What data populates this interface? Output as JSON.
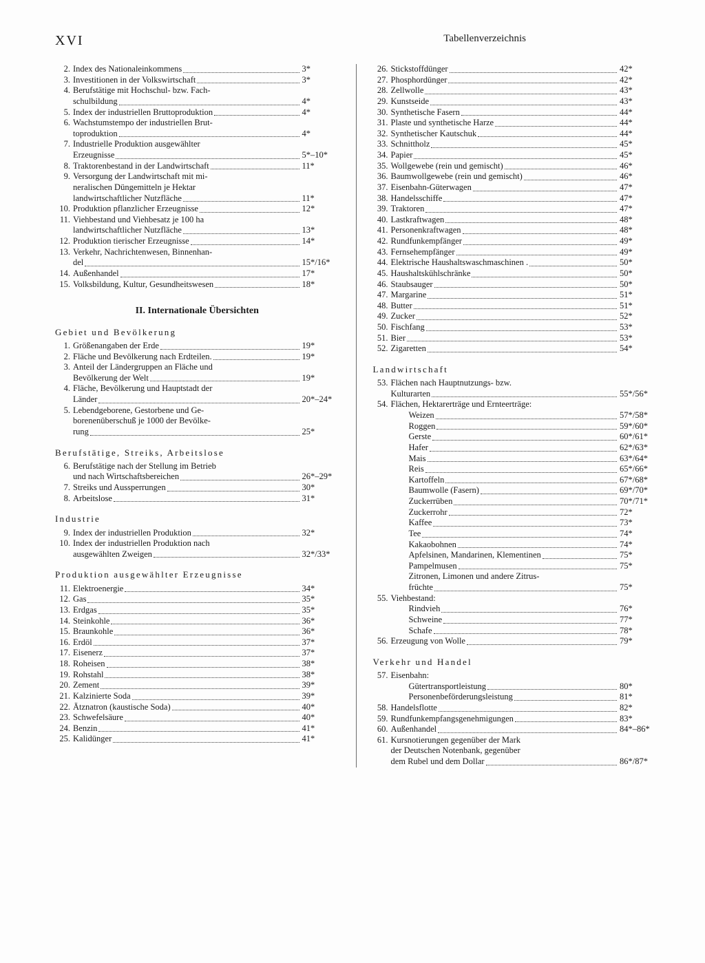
{
  "page_number": "XVI",
  "header_title": "Tabellenverzeichnis",
  "section2_title": "II. Internationale Übersichten",
  "left": {
    "top": [
      {
        "n": "2.",
        "t": "Index des Nationaleinkommens",
        "p": "3*"
      },
      {
        "n": "3.",
        "t": "Investitionen in der Volkswirtschaft",
        "p": "3*"
      },
      {
        "n": "4.",
        "t": "Berufstätige mit Hochschul- bzw. Fach-",
        "t2": "schulbildung",
        "p": "4*"
      },
      {
        "n": "5.",
        "t": "Index der industriellen Bruttoproduktion",
        "p": "4*"
      },
      {
        "n": "6.",
        "t": "Wachstumstempo der industriellen Brut-",
        "t2": "toproduktion",
        "p": "4*"
      },
      {
        "n": "7.",
        "t": "Industrielle Produktion ausgewählter",
        "t2": "Erzeugnisse",
        "p": "5*–10*"
      },
      {
        "n": "8.",
        "t": "Traktorenbestand in der Landwirtschaft",
        "p": "11*"
      },
      {
        "n": "9.",
        "t": "Versorgung der Landwirtschaft mit mi-",
        "t2": "neralischen Düngemitteln je Hektar",
        "t3": "landwirtschaftlicher Nutzfläche",
        "p": "11*"
      },
      {
        "n": "10.",
        "t": "Produktion pflanzlicher Erzeugnisse",
        "p": "12*"
      },
      {
        "n": "11.",
        "t": "Viehbestand und Viehbesatz je 100 ha",
        "t2": "landwirtschaftlicher Nutzfläche",
        "p": "13*"
      },
      {
        "n": "12.",
        "t": "Produktion tierischer Erzeugnisse",
        "p": "14*"
      },
      {
        "n": "13.",
        "t": "Verkehr, Nachrichtenwesen, Binnenhan-",
        "t2": "del",
        "p": "15*/16*"
      },
      {
        "n": "14.",
        "t": "Außenhandel",
        "p": "17*"
      },
      {
        "n": "15.",
        "t": "Volksbildung, Kultur, Gesundheitswesen",
        "p": "18*"
      }
    ],
    "sub1_head": "Gebiet und Bevölkerung",
    "sub1": [
      {
        "n": "1.",
        "t": "Größenangaben der Erde",
        "p": "19*"
      },
      {
        "n": "2.",
        "t": "Fläche und Bevölkerung nach Erdteilen.",
        "p": "19*"
      },
      {
        "n": "3.",
        "t": "Anteil der Ländergruppen an Fläche und",
        "t2": "Bevölkerung der Welt",
        "p": "19*"
      },
      {
        "n": "4.",
        "t": "Fläche, Bevölkerung und Hauptstadt der",
        "t2": "Länder",
        "p": "20*–24*"
      },
      {
        "n": "5.",
        "t": "Lebendgeborene, Gestorbene und Ge-",
        "t2": "borenenüberschuß je 1000 der Bevölke-",
        "t3": "rung",
        "p": "25*"
      }
    ],
    "sub2_head": "Berufstätige, Streiks, Arbeitslose",
    "sub2": [
      {
        "n": "6.",
        "t": "Berufstätige nach der Stellung im Betrieb",
        "t2": "und nach Wirtschaftsbereichen",
        "p": "26*–29*"
      },
      {
        "n": "7.",
        "t": "Streiks und Aussperrungen",
        "p": "30*"
      },
      {
        "n": "8.",
        "t": "Arbeitslose",
        "p": "31*"
      }
    ],
    "sub3_head": "Industrie",
    "sub3": [
      {
        "n": "9.",
        "t": "Index der industriellen Produktion",
        "p": "32*"
      },
      {
        "n": "10.",
        "t": "Index der industriellen Produktion nach",
        "t2": "ausgewählten Zweigen",
        "p": "32*/33*"
      }
    ],
    "sub4_head": "Produktion ausgewählter Erzeugnisse",
    "sub4": [
      {
        "n": "11.",
        "t": "Elektroenergie",
        "p": "34*"
      },
      {
        "n": "12.",
        "t": "Gas",
        "p": "35*"
      },
      {
        "n": "13.",
        "t": "Erdgas",
        "p": "35*"
      },
      {
        "n": "14.",
        "t": "Steinkohle",
        "p": "36*"
      },
      {
        "n": "15.",
        "t": "Braunkohle",
        "p": "36*"
      },
      {
        "n": "16.",
        "t": "Erdöl",
        "p": "37*"
      },
      {
        "n": "17.",
        "t": "Eisenerz",
        "p": "37*"
      },
      {
        "n": "18.",
        "t": "Roheisen",
        "p": "38*"
      },
      {
        "n": "19.",
        "t": "Rohstahl",
        "p": "38*"
      },
      {
        "n": "20.",
        "t": "Zement",
        "p": "39*"
      },
      {
        "n": "21.",
        "t": "Kalzinierte Soda",
        "p": "39*"
      },
      {
        "n": "22.",
        "t": "Ätznatron (kaustische Soda)",
        "p": "40*"
      },
      {
        "n": "23.",
        "t": "Schwefelsäure",
        "p": "40*"
      },
      {
        "n": "24.",
        "t": "Benzin",
        "p": "41*"
      },
      {
        "n": "25.",
        "t": "Kalidünger",
        "p": "41*"
      }
    ]
  },
  "right": {
    "top": [
      {
        "n": "26.",
        "t": "Stickstoffdünger",
        "p": "42*"
      },
      {
        "n": "27.",
        "t": "Phosphordünger",
        "p": "42*"
      },
      {
        "n": "28.",
        "t": "Zellwolle",
        "p": "43*"
      },
      {
        "n": "29.",
        "t": "Kunstseide",
        "p": "43*"
      },
      {
        "n": "30.",
        "t": "Synthetische Fasern",
        "p": "44*"
      },
      {
        "n": "31.",
        "t": "Plaste und synthetische Harze",
        "p": "44*"
      },
      {
        "n": "32.",
        "t": "Synthetischer Kautschuk",
        "p": "44*"
      },
      {
        "n": "33.",
        "t": "Schnittholz",
        "p": "45*"
      },
      {
        "n": "34.",
        "t": "Papier",
        "p": "45*"
      },
      {
        "n": "35.",
        "t": "Wollgewebe (rein und gemischt)",
        "p": "46*"
      },
      {
        "n": "36.",
        "t": "Baumwollgewebe (rein und gemischt)",
        "p": "46*"
      },
      {
        "n": "37.",
        "t": "Eisenbahn-Güterwagen",
        "p": "47*"
      },
      {
        "n": "38.",
        "t": "Handelsschiffe",
        "p": "47*"
      },
      {
        "n": "39.",
        "t": "Traktoren",
        "p": "47*"
      },
      {
        "n": "40.",
        "t": "Lastkraftwagen",
        "p": "48*"
      },
      {
        "n": "41.",
        "t": "Personenkraftwagen",
        "p": "48*"
      },
      {
        "n": "42.",
        "t": "Rundfunkempfänger",
        "p": "49*"
      },
      {
        "n": "43.",
        "t": "Fernsehempfänger",
        "p": "49*"
      },
      {
        "n": "44.",
        "t": "Elektrische Haushaltswaschmaschinen .",
        "p": "50*"
      },
      {
        "n": "45.",
        "t": "Haushaltskühlschränke",
        "p": "50*"
      },
      {
        "n": "46.",
        "t": "Staubsauger",
        "p": "50*"
      },
      {
        "n": "47.",
        "t": "Margarine",
        "p": "51*"
      },
      {
        "n": "48.",
        "t": "Butter",
        "p": "51*"
      },
      {
        "n": "49.",
        "t": "Zucker",
        "p": "52*"
      },
      {
        "n": "50.",
        "t": "Fischfang",
        "p": "53*"
      },
      {
        "n": "51.",
        "t": "Bier",
        "p": "53*"
      },
      {
        "n": "52.",
        "t": "Zigaretten",
        "p": "54*"
      }
    ],
    "sub1_head": "Landwirtschaft",
    "sub1a": [
      {
        "n": "53.",
        "t": "Flächen nach Hauptnutzungs- bzw.",
        "t2": "Kulturarten",
        "p": "55*/56*"
      },
      {
        "n": "54.",
        "t": "Flächen, Hektarerträge und Ernteerträge:",
        "p": ""
      }
    ],
    "crops": [
      {
        "t": "Weizen",
        "p": "57*/58*"
      },
      {
        "t": "Roggen",
        "p": "59*/60*"
      },
      {
        "t": "Gerste",
        "p": "60*/61*"
      },
      {
        "t": "Hafer",
        "p": "62*/63*"
      },
      {
        "t": "Mais",
        "p": "63*/64*"
      },
      {
        "t": "Reis",
        "p": "65*/66*"
      },
      {
        "t": "Kartoffeln",
        "p": "67*/68*"
      },
      {
        "t": "Baumwolle (Fasern)",
        "p": "69*/70*"
      },
      {
        "t": "Zuckerrüben",
        "p": "70*/71*"
      },
      {
        "t": "Zuckerrohr",
        "p": "72*"
      },
      {
        "t": "Kaffee",
        "p": "73*"
      },
      {
        "t": "Tee",
        "p": "74*"
      },
      {
        "t": "Kakaobohnen",
        "p": "74*"
      },
      {
        "t": "Apfelsinen, Mandarinen, Klementinen",
        "p": "75*"
      },
      {
        "t": "Pampelmusen",
        "p": "75*"
      },
      {
        "t": "Zitronen, Limonen und andere Zitrus-",
        "t2": "früchte",
        "p": "75*"
      }
    ],
    "sub1b": [
      {
        "n": "55.",
        "t": "Viehbestand:",
        "p": ""
      }
    ],
    "livestock": [
      {
        "t": "Rindvieh",
        "p": "76*"
      },
      {
        "t": "Schweine",
        "p": "77*"
      },
      {
        "t": "Schafe",
        "p": "78*"
      }
    ],
    "sub1c": [
      {
        "n": "56.",
        "t": "Erzeugung von Wolle",
        "p": "79*"
      }
    ],
    "sub2_head": "Verkehr und Handel",
    "sub2a": [
      {
        "n": "57.",
        "t": "Eisenbahn:",
        "p": ""
      }
    ],
    "rail": [
      {
        "t": "Gütertransportleistung",
        "p": "80*"
      },
      {
        "t": "Personenbeförderungsleistung",
        "p": "81*"
      }
    ],
    "sub2b": [
      {
        "n": "58.",
        "t": "Handelsflotte",
        "p": "82*"
      },
      {
        "n": "59.",
        "t": "Rundfunkempfangsgenehmigungen",
        "p": "83*"
      },
      {
        "n": "60.",
        "t": "Außenhandel",
        "p": "84*–86*"
      },
      {
        "n": "61.",
        "t": "Kursnotierungen gegenüber der Mark",
        "t2": "der Deutschen Notenbank, gegenüber",
        "t3": "dem Rubel und dem Dollar",
        "p": "86*/87*"
      }
    ]
  }
}
